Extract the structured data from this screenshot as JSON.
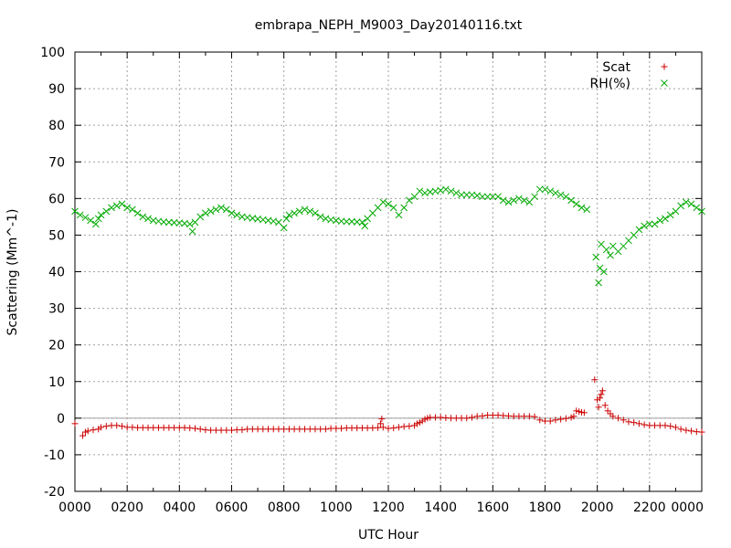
{
  "chart_data": {
    "type": "scatter",
    "title": "embrapa_NEPH_M9003_Day20140116.txt",
    "xlabel": "UTC Hour",
    "ylabel": "Scattering (Mm^-1)",
    "xlim": [
      0,
      24
    ],
    "ylim": [
      -20,
      100
    ],
    "grid": true,
    "legend_position": "top-right",
    "x_ticks": [
      {
        "value": 0,
        "label": "0000"
      },
      {
        "value": 2,
        "label": "0200"
      },
      {
        "value": 4,
        "label": "0400"
      },
      {
        "value": 6,
        "label": "0600"
      },
      {
        "value": 8,
        "label": "0800"
      },
      {
        "value": 10,
        "label": "1000"
      },
      {
        "value": 12,
        "label": "1200"
      },
      {
        "value": 14,
        "label": "1400"
      },
      {
        "value": 16,
        "label": "1600"
      },
      {
        "value": 18,
        "label": "1800"
      },
      {
        "value": 20,
        "label": "2000"
      },
      {
        "value": 22,
        "label": "2200"
      },
      {
        "value": 24,
        "label": "0000"
      }
    ],
    "y_ticks": [
      -20,
      -10,
      0,
      10,
      20,
      30,
      40,
      50,
      60,
      70,
      80,
      90,
      100
    ],
    "series": [
      {
        "name": "Scat",
        "color": "#cc0000",
        "marker": "plus",
        "points": [
          [
            0.0,
            -1.5
          ],
          [
            0.3,
            -4.8
          ],
          [
            0.4,
            -3.8
          ],
          [
            0.5,
            -3.5
          ],
          [
            0.7,
            -3.2
          ],
          [
            0.9,
            -3.0
          ],
          [
            1.0,
            -2.5
          ],
          [
            1.2,
            -2.2
          ],
          [
            1.4,
            -2.0
          ],
          [
            1.6,
            -2.0
          ],
          [
            1.8,
            -2.2
          ],
          [
            2.0,
            -2.5
          ],
          [
            2.2,
            -2.5
          ],
          [
            2.4,
            -2.6
          ],
          [
            2.6,
            -2.6
          ],
          [
            2.8,
            -2.6
          ],
          [
            3.0,
            -2.6
          ],
          [
            3.2,
            -2.6
          ],
          [
            3.4,
            -2.6
          ],
          [
            3.6,
            -2.6
          ],
          [
            3.8,
            -2.6
          ],
          [
            4.0,
            -2.6
          ],
          [
            4.2,
            -2.6
          ],
          [
            4.4,
            -2.7
          ],
          [
            4.6,
            -2.8
          ],
          [
            4.8,
            -3.0
          ],
          [
            5.0,
            -3.2
          ],
          [
            5.2,
            -3.3
          ],
          [
            5.4,
            -3.3
          ],
          [
            5.6,
            -3.3
          ],
          [
            5.8,
            -3.3
          ],
          [
            6.0,
            -3.3
          ],
          [
            6.2,
            -3.2
          ],
          [
            6.4,
            -3.2
          ],
          [
            6.6,
            -3.0
          ],
          [
            6.8,
            -3.0
          ],
          [
            7.0,
            -3.0
          ],
          [
            7.2,
            -3.0
          ],
          [
            7.4,
            -3.0
          ],
          [
            7.6,
            -3.0
          ],
          [
            7.8,
            -3.0
          ],
          [
            8.0,
            -3.0
          ],
          [
            8.2,
            -3.0
          ],
          [
            8.4,
            -3.0
          ],
          [
            8.6,
            -3.0
          ],
          [
            8.8,
            -3.0
          ],
          [
            9.0,
            -3.0
          ],
          [
            9.2,
            -3.0
          ],
          [
            9.4,
            -3.0
          ],
          [
            9.6,
            -3.0
          ],
          [
            9.8,
            -2.8
          ],
          [
            10.0,
            -2.8
          ],
          [
            10.2,
            -2.8
          ],
          [
            10.4,
            -2.7
          ],
          [
            10.6,
            -2.7
          ],
          [
            10.8,
            -2.7
          ],
          [
            11.0,
            -2.7
          ],
          [
            11.2,
            -2.7
          ],
          [
            11.4,
            -2.7
          ],
          [
            11.6,
            -2.6
          ],
          [
            11.7,
            -1.5
          ],
          [
            11.75,
            -0.2
          ],
          [
            11.8,
            -2.5
          ],
          [
            12.0,
            -2.8
          ],
          [
            12.2,
            -2.7
          ],
          [
            12.4,
            -2.5
          ],
          [
            12.6,
            -2.3
          ],
          [
            12.8,
            -2.2
          ],
          [
            13.0,
            -2.0
          ],
          [
            13.1,
            -1.5
          ],
          [
            13.2,
            -1.2
          ],
          [
            13.3,
            -0.8
          ],
          [
            13.4,
            -0.3
          ],
          [
            13.5,
            0.0
          ],
          [
            13.6,
            0.2
          ],
          [
            13.8,
            0.2
          ],
          [
            14.0,
            0.2
          ],
          [
            14.2,
            0.1
          ],
          [
            14.4,
            0.0
          ],
          [
            14.6,
            0.0
          ],
          [
            14.8,
            0.0
          ],
          [
            15.0,
            0.0
          ],
          [
            15.2,
            0.2
          ],
          [
            15.4,
            0.5
          ],
          [
            15.6,
            0.6
          ],
          [
            15.8,
            0.8
          ],
          [
            16.0,
            0.8
          ],
          [
            16.2,
            0.8
          ],
          [
            16.4,
            0.7
          ],
          [
            16.6,
            0.6
          ],
          [
            16.8,
            0.5
          ],
          [
            17.0,
            0.5
          ],
          [
            17.2,
            0.5
          ],
          [
            17.4,
            0.5
          ],
          [
            17.6,
            0.4
          ],
          [
            17.8,
            -0.5
          ],
          [
            18.0,
            -0.8
          ],
          [
            18.2,
            -0.8
          ],
          [
            18.4,
            -0.5
          ],
          [
            18.6,
            -0.3
          ],
          [
            18.8,
            -0.1
          ],
          [
            19.0,
            0.2
          ],
          [
            19.1,
            0.5
          ],
          [
            19.2,
            2.0
          ],
          [
            19.3,
            1.8
          ],
          [
            19.4,
            1.6
          ],
          [
            19.5,
            1.5
          ],
          [
            19.9,
            10.5
          ],
          [
            20.0,
            5.0
          ],
          [
            20.05,
            3.0
          ],
          [
            20.1,
            5.5
          ],
          [
            20.15,
            6.5
          ],
          [
            20.2,
            7.5
          ],
          [
            20.3,
            3.5
          ],
          [
            20.4,
            2.0
          ],
          [
            20.5,
            1.2
          ],
          [
            20.6,
            0.5
          ],
          [
            20.8,
            0.0
          ],
          [
            21.0,
            -0.5
          ],
          [
            21.2,
            -1.0
          ],
          [
            21.4,
            -1.2
          ],
          [
            21.6,
            -1.5
          ],
          [
            21.8,
            -1.8
          ],
          [
            22.0,
            -2.0
          ],
          [
            22.2,
            -2.0
          ],
          [
            22.4,
            -2.0
          ],
          [
            22.6,
            -2.0
          ],
          [
            22.8,
            -2.2
          ],
          [
            23.0,
            -2.5
          ],
          [
            23.2,
            -3.0
          ],
          [
            23.4,
            -3.3
          ],
          [
            23.6,
            -3.5
          ],
          [
            23.8,
            -3.7
          ],
          [
            24.0,
            -3.8
          ]
        ]
      },
      {
        "name": "RH(%)",
        "color": "#00aa00",
        "marker": "cross",
        "points": [
          [
            0.0,
            56.5
          ],
          [
            0.2,
            55.5
          ],
          [
            0.4,
            54.8
          ],
          [
            0.6,
            54.0
          ],
          [
            0.8,
            53.0
          ],
          [
            0.9,
            54.5
          ],
          [
            1.0,
            55.5
          ],
          [
            1.2,
            56.5
          ],
          [
            1.4,
            57.5
          ],
          [
            1.6,
            58.0
          ],
          [
            1.8,
            58.5
          ],
          [
            2.0,
            57.5
          ],
          [
            2.2,
            57.0
          ],
          [
            2.4,
            56.0
          ],
          [
            2.6,
            55.0
          ],
          [
            2.8,
            54.5
          ],
          [
            3.0,
            54.0
          ],
          [
            3.2,
            53.8
          ],
          [
            3.4,
            53.6
          ],
          [
            3.6,
            53.5
          ],
          [
            3.8,
            53.4
          ],
          [
            4.0,
            53.3
          ],
          [
            4.2,
            53.2
          ],
          [
            4.4,
            53.0
          ],
          [
            4.5,
            51.0
          ],
          [
            4.6,
            53.5
          ],
          [
            4.8,
            55.0
          ],
          [
            5.0,
            56.0
          ],
          [
            5.2,
            56.5
          ],
          [
            5.4,
            57.0
          ],
          [
            5.6,
            57.5
          ],
          [
            5.8,
            57.0
          ],
          [
            6.0,
            56.0
          ],
          [
            6.2,
            55.5
          ],
          [
            6.4,
            55.0
          ],
          [
            6.6,
            54.8
          ],
          [
            6.8,
            54.6
          ],
          [
            7.0,
            54.4
          ],
          [
            7.2,
            54.2
          ],
          [
            7.4,
            54.0
          ],
          [
            7.6,
            53.8
          ],
          [
            7.8,
            53.5
          ],
          [
            8.0,
            52.0
          ],
          [
            8.1,
            54.5
          ],
          [
            8.2,
            55.5
          ],
          [
            8.4,
            56.0
          ],
          [
            8.6,
            56.5
          ],
          [
            8.8,
            57.0
          ],
          [
            9.0,
            56.5
          ],
          [
            9.2,
            56.0
          ],
          [
            9.4,
            55.0
          ],
          [
            9.6,
            54.5
          ],
          [
            9.8,
            54.2
          ],
          [
            10.0,
            54.0
          ],
          [
            10.2,
            53.8
          ],
          [
            10.4,
            53.7
          ],
          [
            10.6,
            53.7
          ],
          [
            10.8,
            53.6
          ],
          [
            11.0,
            53.5
          ],
          [
            11.1,
            52.5
          ],
          [
            11.2,
            54.5
          ],
          [
            11.4,
            56.0
          ],
          [
            11.6,
            57.5
          ],
          [
            11.8,
            59.0
          ],
          [
            12.0,
            58.5
          ],
          [
            12.2,
            57.5
          ],
          [
            12.4,
            55.5
          ],
          [
            12.6,
            57.5
          ],
          [
            12.8,
            59.5
          ],
          [
            13.0,
            60.5
          ],
          [
            13.2,
            62.0
          ],
          [
            13.4,
            61.5
          ],
          [
            13.6,
            61.8
          ],
          [
            13.8,
            62.0
          ],
          [
            14.0,
            62.2
          ],
          [
            14.2,
            62.5
          ],
          [
            14.4,
            62.0
          ],
          [
            14.6,
            61.5
          ],
          [
            14.8,
            61.0
          ],
          [
            15.0,
            61.0
          ],
          [
            15.2,
            61.0
          ],
          [
            15.4,
            60.8
          ],
          [
            15.6,
            60.5
          ],
          [
            15.8,
            60.5
          ],
          [
            16.0,
            60.5
          ],
          [
            16.2,
            60.5
          ],
          [
            16.4,
            59.5
          ],
          [
            16.6,
            59.0
          ],
          [
            16.8,
            59.5
          ],
          [
            17.0,
            60.0
          ],
          [
            17.2,
            59.5
          ],
          [
            17.4,
            59.0
          ],
          [
            17.6,
            60.5
          ],
          [
            17.8,
            62.5
          ],
          [
            18.0,
            62.5
          ],
          [
            18.2,
            62.0
          ],
          [
            18.4,
            61.5
          ],
          [
            18.6,
            61.0
          ],
          [
            18.8,
            60.5
          ],
          [
            19.0,
            59.5
          ],
          [
            19.2,
            58.5
          ],
          [
            19.4,
            57.5
          ],
          [
            19.6,
            57.0
          ],
          [
            19.95,
            44.0
          ],
          [
            20.05,
            37.0
          ],
          [
            20.1,
            41.0
          ],
          [
            20.15,
            47.5
          ],
          [
            20.25,
            40.0
          ],
          [
            20.35,
            46.0
          ],
          [
            20.5,
            44.5
          ],
          [
            20.6,
            47.0
          ],
          [
            20.8,
            45.5
          ],
          [
            21.0,
            47.0
          ],
          [
            21.2,
            48.5
          ],
          [
            21.4,
            50.0
          ],
          [
            21.6,
            51.5
          ],
          [
            21.8,
            52.5
          ],
          [
            22.0,
            53.0
          ],
          [
            22.2,
            53.0
          ],
          [
            22.4,
            54.0
          ],
          [
            22.6,
            54.5
          ],
          [
            22.8,
            55.5
          ],
          [
            23.0,
            56.5
          ],
          [
            23.2,
            58.0
          ],
          [
            23.4,
            59.0
          ],
          [
            23.6,
            58.5
          ],
          [
            23.8,
            57.5
          ],
          [
            24.0,
            56.5
          ]
        ]
      }
    ]
  }
}
